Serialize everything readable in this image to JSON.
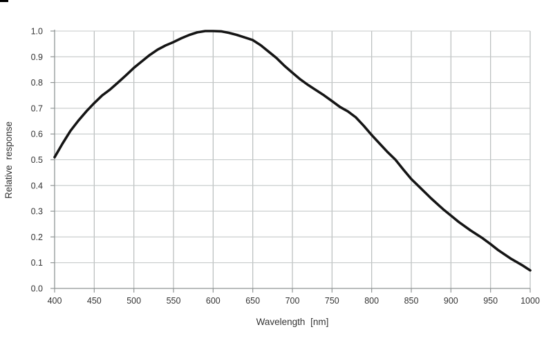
{
  "page": {
    "background": "#ffffff",
    "artifact": "black-mark-top-left"
  },
  "chart_data": {
    "type": "line",
    "title": "",
    "xlabel": "Wavelength [nm]",
    "ylabel": "Relative response",
    "xlim": [
      400,
      1000
    ],
    "ylim": [
      0.0,
      1.0
    ],
    "grid": true,
    "legend": false,
    "x_ticks": [
      400,
      450,
      500,
      550,
      600,
      650,
      700,
      750,
      800,
      850,
      900,
      950,
      1000
    ],
    "x_tick_labels": [
      "400",
      "450",
      "500",
      "550",
      "600",
      "650",
      "700",
      "750",
      "800",
      "850",
      "900",
      "950",
      "1000"
    ],
    "y_ticks": [
      0.0,
      0.1,
      0.2,
      0.3,
      0.4,
      0.5,
      0.6,
      0.7,
      0.8,
      0.9,
      1.0
    ],
    "y_tick_labels": [
      "0.0",
      "0.1",
      "0.2",
      "0.3",
      "0.4",
      "0.5",
      "0.6",
      "0.7",
      "0.8",
      "0.9",
      "1.0"
    ],
    "colors": {
      "curve": "#151515",
      "grid_horizontal": "#c4c8c8",
      "grid_vertical": "#b7bcbc",
      "axis": "#8f9494",
      "text": "#333333"
    },
    "series": [
      {
        "name": "relative-response",
        "x": [
          400,
          410,
          420,
          430,
          440,
          450,
          460,
          470,
          480,
          490,
          500,
          510,
          520,
          530,
          540,
          550,
          560,
          570,
          580,
          590,
          600,
          610,
          620,
          630,
          640,
          650,
          660,
          670,
          680,
          690,
          700,
          710,
          720,
          730,
          740,
          750,
          760,
          770,
          780,
          790,
          800,
          810,
          820,
          830,
          840,
          850,
          860,
          875,
          890,
          900,
          910,
          925,
          940,
          950,
          960,
          975,
          990,
          1000
        ],
        "y": [
          0.51,
          0.563,
          0.612,
          0.652,
          0.688,
          0.72,
          0.75,
          0.773,
          0.8,
          0.828,
          0.857,
          0.882,
          0.907,
          0.928,
          0.944,
          0.957,
          0.972,
          0.985,
          0.995,
          1.0,
          1.0,
          0.999,
          0.993,
          0.985,
          0.975,
          0.965,
          0.945,
          0.92,
          0.895,
          0.865,
          0.838,
          0.812,
          0.79,
          0.77,
          0.75,
          0.728,
          0.705,
          0.688,
          0.665,
          0.632,
          0.596,
          0.563,
          0.53,
          0.5,
          0.462,
          0.425,
          0.395,
          0.35,
          0.308,
          0.283,
          0.258,
          0.225,
          0.195,
          0.172,
          0.148,
          0.117,
          0.09,
          0.07
        ]
      }
    ]
  }
}
